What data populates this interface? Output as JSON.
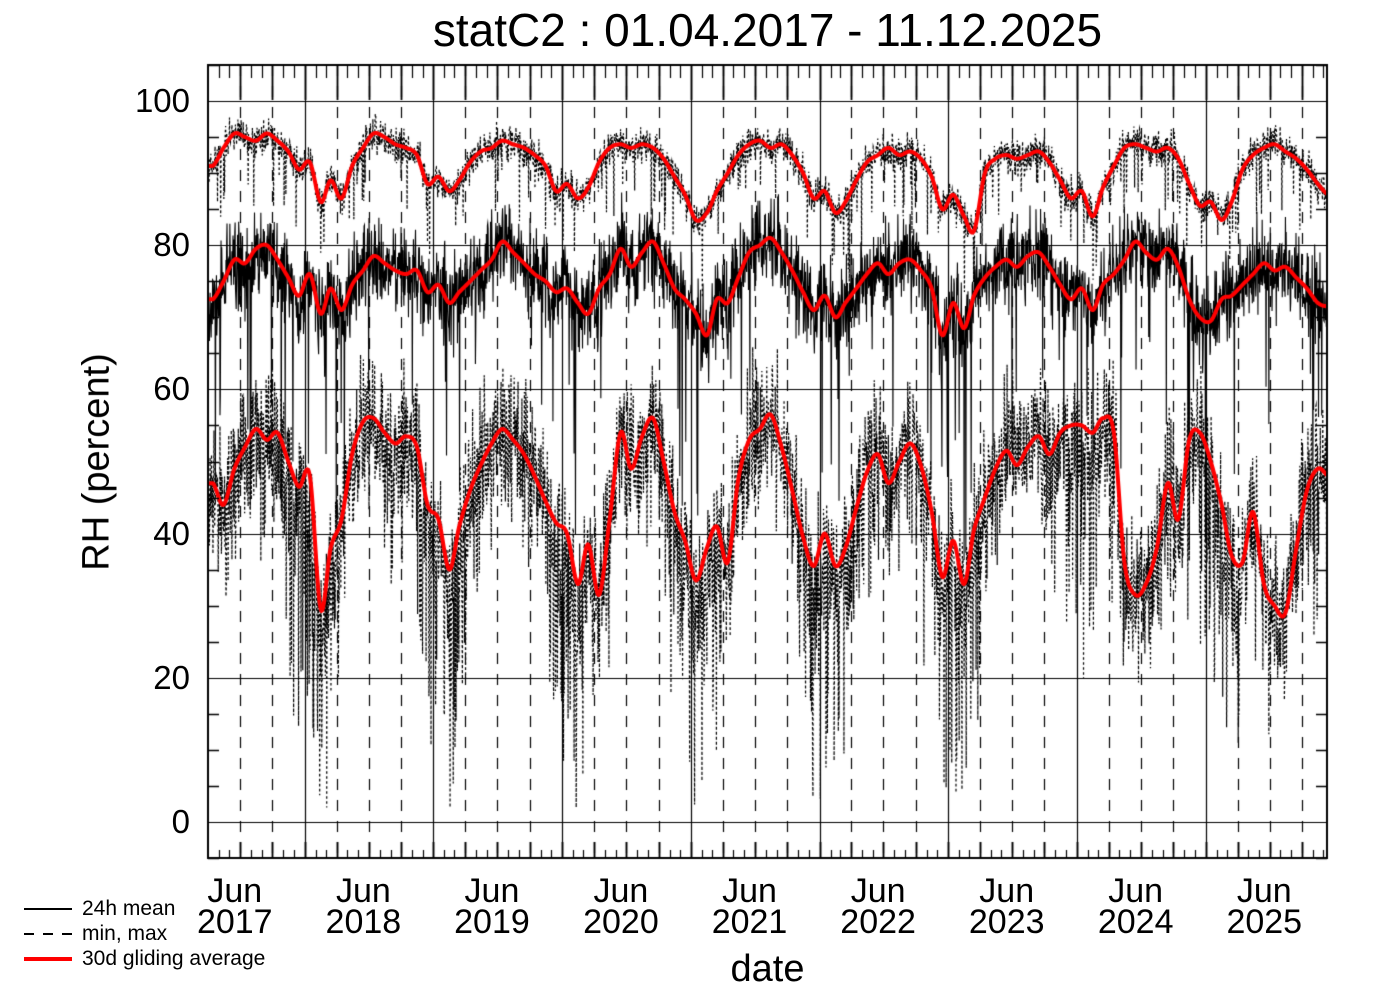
{
  "chart_data": {
    "type": "line",
    "title": "statC2 : 01.04.2017 - 11.12.2025",
    "xlabel": "date",
    "ylabel": "RH (percent)",
    "ylim": [
      -5,
      105
    ],
    "yticks": {
      "major": [
        0,
        20,
        40,
        60,
        80,
        100
      ],
      "minor_step": 5
    },
    "x_range_dates": [
      "2017-04-01",
      "2025-12-11"
    ],
    "xticks": [
      {
        "month": "Jun",
        "year": "2017"
      },
      {
        "month": "Jun",
        "year": "2018"
      },
      {
        "month": "Jun",
        "year": "2019"
      },
      {
        "month": "Jun",
        "year": "2020"
      },
      {
        "month": "Jun",
        "year": "2021"
      },
      {
        "month": "Jun",
        "year": "2022"
      },
      {
        "month": "Jun",
        "year": "2023"
      },
      {
        "month": "Jun",
        "year": "2024"
      },
      {
        "month": "Jun",
        "year": "2025"
      }
    ],
    "grid": {
      "horizontal": "solid lines at each major y tick",
      "vertical_solid": "January 1 of each year",
      "vertical_dashed": "April, July, October of each year",
      "minor_x_ticks": "monthly",
      "dash_pattern": [
        11,
        10
      ]
    },
    "colors": {
      "data": "#000000",
      "average": "#ff0000",
      "background": "#ffffff"
    },
    "legend": [
      {
        "label": "24h mean",
        "style": "solid",
        "color": "#000000"
      },
      {
        "label": "min, max",
        "style": "dashed",
        "color": "#000000"
      },
      {
        "label": "30d gliding average",
        "style": "solid-thick",
        "color": "#ff0000"
      }
    ],
    "anchor_cadence": "monthly values (mid-month) from 2017-04 to 2025-12, read from the red 30d gliding average curves",
    "series": [
      {
        "name": "30d gliding average of daily max",
        "color": "#ff0000",
        "monthly_values": [
          91,
          93.5,
          95.5,
          95,
          94.5,
          95.5,
          94.5,
          93,
          90.5,
          91.5,
          86,
          89,
          86.5,
          91,
          93.5,
          95.5,
          95,
          94,
          93.5,
          92.5,
          88.5,
          89.5,
          87.5,
          89,
          91.5,
          93,
          93.5,
          94.5,
          94,
          93.5,
          92.5,
          91,
          87.5,
          88.5,
          86.5,
          88,
          91.5,
          93.5,
          94,
          93.5,
          94,
          93.5,
          92,
          89.5,
          87,
          83.5,
          84.5,
          87.5,
          90,
          92.5,
          94,
          94.5,
          93.5,
          94,
          92.5,
          90,
          86.5,
          87.5,
          84.5,
          86,
          89,
          91.5,
          92.5,
          93.5,
          92.5,
          93,
          92,
          89.5,
          85,
          87,
          84,
          82,
          90,
          92,
          92.5,
          92,
          92.5,
          93,
          91.5,
          89,
          86.5,
          87.5,
          84,
          88,
          91,
          93.5,
          94,
          93.5,
          93,
          93.5,
          92,
          88.5,
          85.5,
          86,
          83.5,
          86,
          90.5,
          92.5,
          93.5,
          94,
          93,
          92,
          90.5,
          88.5,
          87
        ]
      },
      {
        "name": "30d gliding average of 24h mean",
        "color": "#ff0000",
        "monthly_values": [
          72.5,
          75,
          78,
          77.5,
          79.5,
          80,
          78,
          75.5,
          73,
          76,
          70.5,
          74,
          71,
          74.5,
          76.5,
          78.5,
          77.5,
          76.5,
          76,
          76.5,
          73.5,
          74.5,
          72,
          73.5,
          75,
          76.5,
          78,
          80.5,
          79,
          77.5,
          76,
          75,
          73.5,
          74,
          72,
          70.5,
          74,
          76,
          79.5,
          77,
          79,
          80.5,
          77.5,
          74,
          72.5,
          70.5,
          67.5,
          72.5,
          72,
          75.5,
          79,
          80,
          81,
          79,
          76.5,
          73.5,
          71,
          73,
          70,
          72,
          74,
          76,
          77.5,
          76,
          77.5,
          78,
          76.5,
          74,
          67.5,
          72,
          68.5,
          73,
          75.5,
          77,
          78,
          77,
          78.5,
          79,
          77,
          74.5,
          72.5,
          74,
          71,
          74.5,
          76,
          78,
          80.5,
          79,
          78,
          79.5,
          77,
          72.5,
          70,
          69.5,
          72.5,
          73,
          74.5,
          76,
          77.5,
          76.5,
          77,
          75.5,
          74,
          72,
          71.5
        ]
      },
      {
        "name": "30d gliding average of daily min",
        "color": "#ff0000",
        "monthly_values": [
          47,
          44,
          49,
          52,
          54.5,
          53,
          54,
          50,
          46.5,
          48,
          29.5,
          38,
          42,
          51,
          55.5,
          56,
          54,
          52.5,
          53.5,
          52,
          44,
          42,
          35,
          41,
          46,
          49.5,
          52.5,
          54.5,
          53,
          51,
          48,
          44.5,
          41.5,
          40,
          33,
          38.5,
          31.5,
          42,
          54,
          49,
          53.5,
          56,
          50,
          43,
          39,
          33.5,
          38,
          41,
          36,
          47.5,
          53,
          54.5,
          56.5,
          52,
          46,
          39.5,
          35.5,
          40,
          35.5,
          38,
          43.5,
          48.5,
          51,
          47,
          50,
          52.5,
          49.5,
          43,
          34,
          39,
          33,
          40.5,
          45,
          49,
          51.5,
          49.5,
          52,
          53.5,
          51,
          54,
          55,
          55,
          54,
          56,
          54,
          36,
          31.5,
          33,
          38,
          47,
          42,
          53,
          54,
          50,
          44,
          37,
          36,
          43,
          33,
          30,
          29,
          38,
          46,
          49,
          48
        ]
      }
    ],
    "noise": {
      "seed": 1337,
      "max_jitter": 2.0,
      "mean_jitter": 5.1,
      "min_jitter": 8.2,
      "mean_dip_prob_base": 0.015,
      "mean_dip_prob_winter": 0.05,
      "mean_dip_max": 27,
      "min_dip_prob_base": 0.08,
      "min_dip_prob_winter": 0.13,
      "min_dip_max": 26,
      "max_dip_prob": 0.05,
      "max_cap": 98.2,
      "min_floor": 2
    }
  }
}
